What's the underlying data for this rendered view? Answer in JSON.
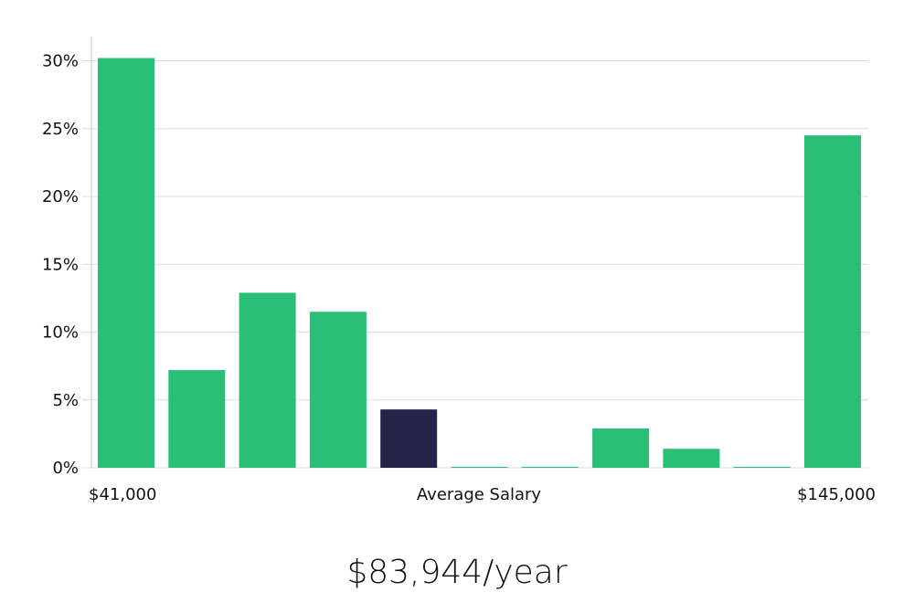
{
  "chart_data": {
    "type": "bar",
    "categories": [
      "$41,000",
      "",
      "",
      "",
      "",
      "Average Salary",
      "",
      "",
      "",
      "",
      "$145,000"
    ],
    "values": [
      30.2,
      7.2,
      12.9,
      11.5,
      4.3,
      0,
      0,
      2.9,
      1.4,
      0,
      24.5
    ],
    "highlight_index": 4,
    "ylim": [
      0,
      31.5
    ],
    "yticks": [
      "0%",
      "5%",
      "10%",
      "15%",
      "20%",
      "25%",
      "30%"
    ],
    "ytick_values": [
      0,
      5,
      10,
      15,
      20,
      25,
      30
    ],
    "xlabels": {
      "left": "$41,000",
      "center": "Average Salary",
      "right": "$145,000"
    },
    "grid": true,
    "colors": {
      "bar": "#29bf77",
      "bar_highlight": "#26234a",
      "grid": "#dddddd",
      "axis": "#cccccc"
    }
  },
  "summary": {
    "salary": "$83,944/year"
  }
}
